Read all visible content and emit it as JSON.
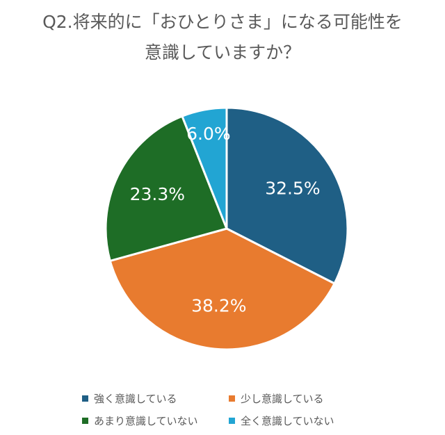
{
  "chart_data": {
    "type": "pie",
    "title_lines": [
      "Q2.将来的に「おひとりさま」になる可能性を",
      "意識していますか？"
    ],
    "slices": [
      {
        "label": "強く意識している",
        "value": 32.5,
        "display": "32.5%",
        "color": "#1f5f85"
      },
      {
        "label": "少し意識している",
        "value": 38.2,
        "display": "38.2%",
        "color": "#e87b2f"
      },
      {
        "label": "あまり意識していない",
        "value": 23.3,
        "display": "23.3%",
        "color": "#1e6d26"
      },
      {
        "label": "全く意識していない",
        "value": 6.0,
        "display": "6.0%",
        "color": "#22a5d3"
      }
    ],
    "start_angle_deg": 0,
    "direction": "clockwise",
    "legend_position": "bottom"
  }
}
